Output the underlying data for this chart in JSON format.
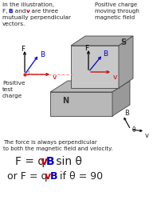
{
  "bg_color": "#ffffff",
  "text_color": "#222222",
  "gray_light": "#aaaaaa",
  "gray_mid": "#999999",
  "gray_dark": "#777777",
  "gray_face": "#c0c0c0",
  "arrow_F": "#000000",
  "arrow_B": "#0000cc",
  "arrow_v": "#cc0000",
  "arrow_bv": "#000000",
  "dashed_color": "#ff8888",
  "bottom_text1": "The force is always perpendicular",
  "bottom_text2": "to both the magnetic field and velocity."
}
